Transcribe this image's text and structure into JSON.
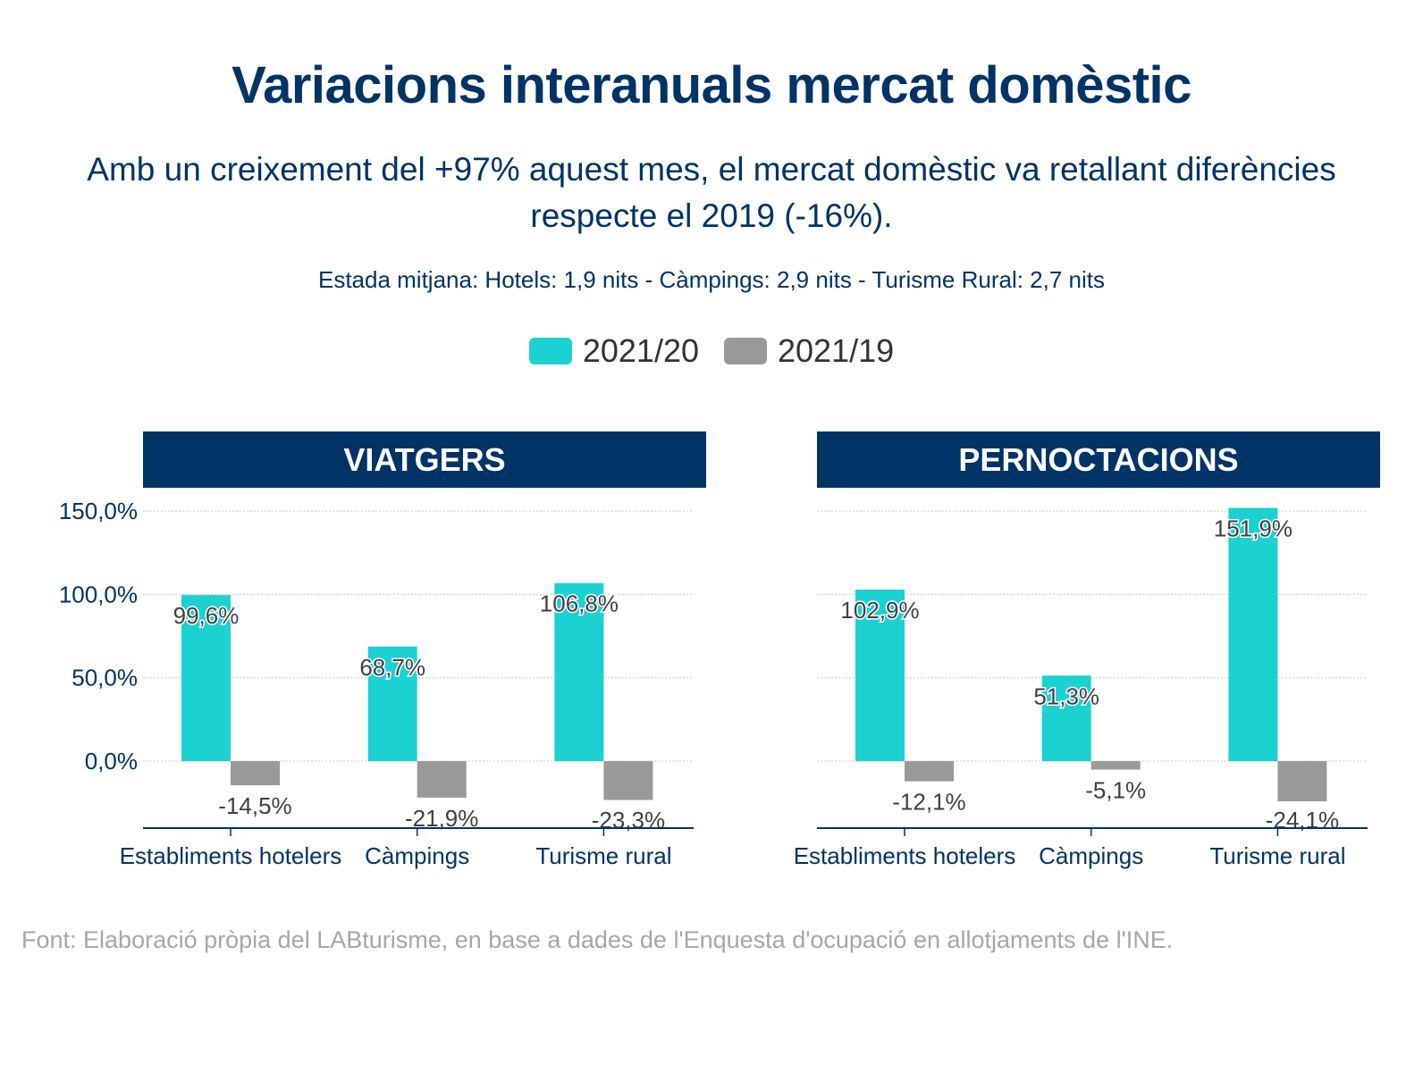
{
  "title": "Variacions interanuals mercat domèstic",
  "subtitle": "Amb un creixement del +97% aquest mes, el mercat domèstic va retallant diferències respecte el 2019 (-16%).",
  "note": "Estada mitjana: Hotels: 1,9 nits - Càmpings: 2,9 nits - Turisme Rural: 2,7 nits",
  "source": "Font: Elaboració pròpia del LABturisme, en base a dades de l'Enquesta d'ocupació en allotjaments de l'INE.",
  "legend": [
    {
      "label": "2021/20",
      "color": "#1bd1d1"
    },
    {
      "label": "2021/19",
      "color": "#999999"
    }
  ],
  "chart_data": [
    {
      "type": "bar",
      "title": "VIATGERS",
      "categories": [
        "Establiments hotelers",
        "Càmpings",
        "Turisme rural"
      ],
      "series": [
        {
          "name": "2021/20",
          "values": [
            99.6,
            68.7,
            106.8
          ],
          "labels": [
            "99,6%",
            "68,7%",
            "106,8%"
          ],
          "color": "#1bd1d1"
        },
        {
          "name": "2021/19",
          "values": [
            -14.5,
            -21.9,
            -23.3
          ],
          "labels": [
            "-14,5%",
            "-21,9%",
            "-23,3%"
          ],
          "color": "#999999"
        }
      ],
      "yticks": [
        0,
        50,
        100,
        150
      ],
      "ytick_labels": [
        "0,0%",
        "50,0%",
        "100,0%",
        "150,0%"
      ],
      "ylim": [
        -40,
        150
      ],
      "grid": true
    },
    {
      "type": "bar",
      "title": "PERNOCTACIONS",
      "categories": [
        "Establiments hotelers",
        "Càmpings",
        "Turisme rural"
      ],
      "series": [
        {
          "name": "2021/20",
          "values": [
            102.9,
            51.3,
            151.9
          ],
          "labels": [
            "102,9%",
            "51,3%",
            "151,9%"
          ],
          "color": "#1bd1d1"
        },
        {
          "name": "2021/19",
          "values": [
            -12.1,
            -5.1,
            -24.1
          ],
          "labels": [
            "-12,1%",
            "-5,1%",
            "-24,1%"
          ],
          "color": "#999999"
        }
      ],
      "yticks": [
        0,
        50,
        100,
        150
      ],
      "ytick_labels": [],
      "ylim": [
        -40,
        150
      ],
      "grid": true
    }
  ]
}
